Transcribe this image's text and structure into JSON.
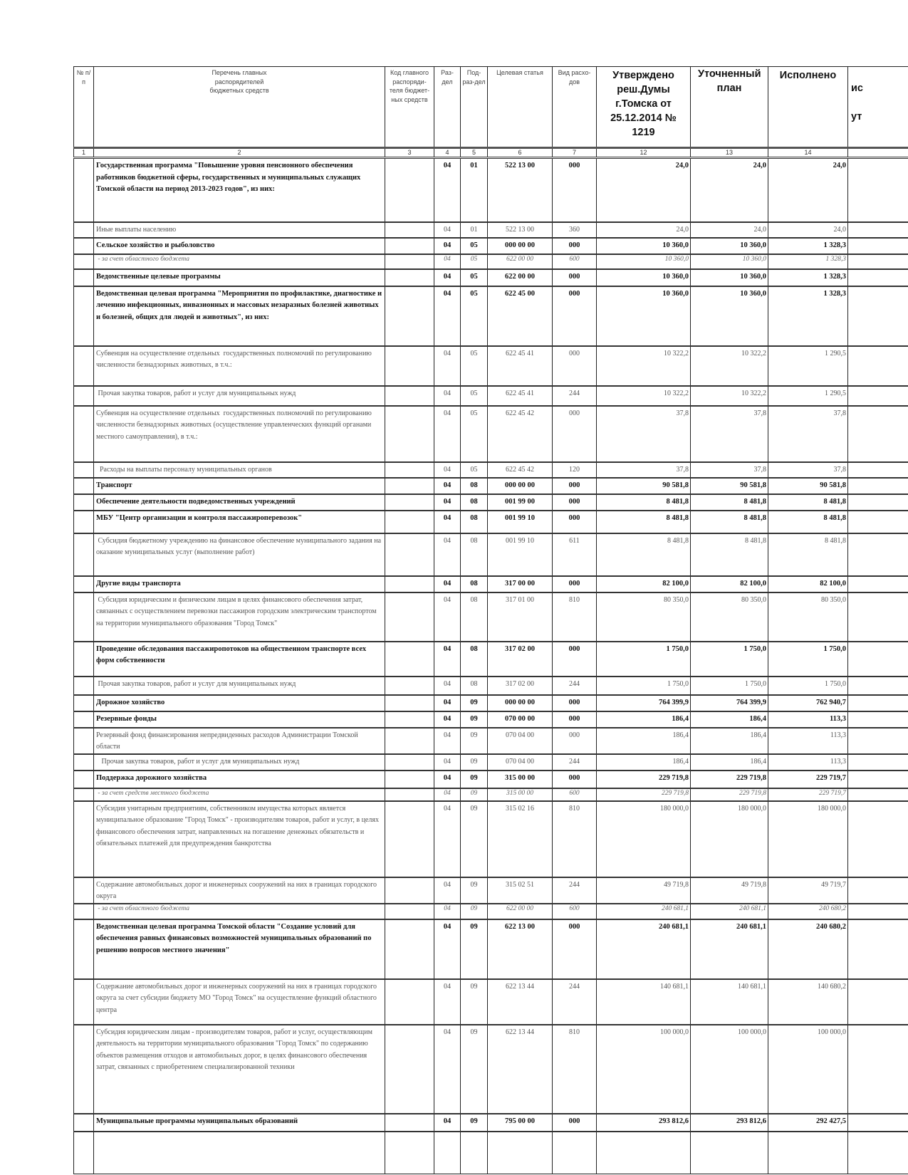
{
  "header": {
    "col_num": "№ п/п",
    "col_name": "Перечень главных распорядителей бюджетных средств",
    "col_kod": "Код главного распоряди-теля бюджет-ных средств",
    "col_razdel": "Раз-дел",
    "col_podrazdel": "Под-раз-дел",
    "col_cs": "Целевая статья",
    "col_vr": "Вид расхо-дов",
    "col_approved": "Утверждено реш.Думы г.Томска от 25.12.2014 № 1219",
    "col_plan": "Уточненный план",
    "col_done": "Исполнено",
    "col_partial_fragments": [
      "ис",
      "ут"
    ]
  },
  "column_numbers": [
    "1",
    "2",
    "3",
    "4",
    "5",
    "6",
    "7",
    "12",
    "13",
    "14",
    ""
  ],
  "rows": [
    {
      "style": "b",
      "h": 90,
      "name": "Государственная программа \"Повышение уровня пенсионного обеспечения  работников бюджетной сферы, государственных и муниципальных служащих Томской области на период 2013-2023 годов\", из них:",
      "kod": "",
      "rz": "04",
      "prz": "01",
      "cs": "522 13 00",
      "vr": "000",
      "v12": "24,0",
      "v13": "24,0",
      "v14": "24,0"
    },
    {
      "style": "",
      "h": 22,
      "name": "Иные выплаты населению",
      "kod": "",
      "rz": "04",
      "prz": "01",
      "cs": "522 13 00",
      "vr": "360",
      "v12": "24,0",
      "v13": "24,0",
      "v14": "24,0"
    },
    {
      "style": "b",
      "h": 23,
      "name": "Сельское хозяйство и рыболовство",
      "kod": "",
      "rz": "04",
      "prz": "05",
      "cs": "000 00 00",
      "vr": "000",
      "v12": "10 360,0",
      "v13": "10 360,0",
      "v14": "1 328,3"
    },
    {
      "style": "i",
      "h": 21,
      "name": " - за счет областного бюджета",
      "kod": "",
      "rz": "04",
      "prz": "05",
      "cs": "622 00 00",
      "vr": "600",
      "v12": "10 360,0",
      "v13": "10 360,0",
      "v14": "1 328,3"
    },
    {
      "style": "b",
      "h": 24,
      "name": "Ведомственные целевые программы",
      "kod": "",
      "rz": "04",
      "prz": "05",
      "cs": "622 00 00",
      "vr": "000",
      "v12": "10 360,0",
      "v13": "10 360,0",
      "v14": "1 328,3"
    },
    {
      "style": "b",
      "h": 84,
      "name": "Ведомственная целевая программа \"Мероприятия по профилактике, диагностике и лечению инфекционных, инвазионных и массовых незаразных болезней животных и болезней, общих для людей и животных\", из них:",
      "kod": "",
      "rz": "04",
      "prz": "05",
      "cs": "622 45 00",
      "vr": "000",
      "v12": "10 360,0",
      "v13": "10 360,0",
      "v14": "1 328,3"
    },
    {
      "style": "",
      "h": 56,
      "name": "Субвенция на осуществление отдельных  государственных полномочий по регулированию численности безнадзорных животных, в т.ч.:",
      "kod": "",
      "rz": "04",
      "prz": "05",
      "cs": "622 45 41",
      "vr": "000",
      "v12": "10 322,2",
      "v13": "10 322,2",
      "v14": "1 290,5"
    },
    {
      "style": "",
      "h": 28,
      "name": " Прочая закупка товаров, работ и услуг для муниципальных нужд",
      "kod": "",
      "rz": "04",
      "prz": "05",
      "cs": "622 45 41",
      "vr": "244",
      "v12": "10 322,2",
      "v13": "10 322,2",
      "v14": "1 290,5"
    },
    {
      "style": "",
      "h": 79,
      "name": "Субвенция на осуществление отдельных  государственных полномочий по регулированию численности безнадзорных животных (осуществление управленческих функций органами местного самоуправления), в т.ч.:",
      "kod": "",
      "rz": "04",
      "prz": "05",
      "cs": "622 45 42",
      "vr": "000",
      "v12": "37,8",
      "v13": "37,8",
      "v14": "37,8"
    },
    {
      "style": "",
      "h": 22,
      "name": "  Расходы на выплаты персоналу муниципальных органов",
      "kod": "",
      "rz": "04",
      "prz": "05",
      "cs": "622 45 42",
      "vr": "120",
      "v12": "37,8",
      "v13": "37,8",
      "v14": "37,8"
    },
    {
      "style": "b",
      "h": 23,
      "name": "Транспорт",
      "kod": "",
      "rz": "04",
      "prz": "08",
      "cs": "000 00 00",
      "vr": "000",
      "v12": "90 581,8",
      "v13": "90 581,8",
      "v14": "90 581,8"
    },
    {
      "style": "b",
      "h": 23,
      "name": "Обеспечение деятельности подведомственных учреждений",
      "kod": "",
      "rz": "04",
      "prz": "08",
      "cs": "001 99 00",
      "vr": "000",
      "v12": "8 481,8",
      "v13": "8 481,8",
      "v14": "8 481,8"
    },
    {
      "style": "b",
      "h": 32,
      "name": "МБУ \"Центр организации и контроля пассажироперевозок\"",
      "kod": "",
      "rz": "04",
      "prz": "08",
      "cs": "001 99 10",
      "vr": "000",
      "v12": "8 481,8",
      "v13": "8 481,8",
      "v14": "8 481,8"
    },
    {
      "style": "",
      "h": 60,
      "name": " Субсидия бюджетному учреждению на финансовое обеспечение муниципального задания на оказание муниципальных услуг (выполнение работ)",
      "kod": "",
      "rz": "04",
      "prz": "08",
      "cs": "001 99 10",
      "vr": "611",
      "v12": "8 481,8",
      "v13": "8 481,8",
      "v14": "8 481,8"
    },
    {
      "style": "b",
      "h": 23,
      "name": "Другие виды транспорта",
      "kod": "",
      "rz": "04",
      "prz": "08",
      "cs": "317 00 00",
      "vr": "000",
      "v12": "82 100,0",
      "v13": "82 100,0",
      "v14": "82 100,0"
    },
    {
      "style": "",
      "h": 69,
      "name": " Субсидия юридическим и физическим лицам в целях финансового обеспечения затрат, связанных с осуществлением перевозки пассажиров городским электрическим транспортом на территории муниципального образования \"Город Томск\"",
      "kod": "",
      "rz": "04",
      "prz": "08",
      "cs": "317 01 00",
      "vr": "810",
      "v12": "80 350,0",
      "v13": "80 350,0",
      "v14": "80 350,0"
    },
    {
      "style": "b",
      "h": 49,
      "name": "Проведение обследования пассажиропотоков на общественном транспорте всех форм собственности",
      "kod": "",
      "rz": "04",
      "prz": "08",
      "cs": "317 02 00",
      "vr": "000",
      "v12": "1 750,0",
      "v13": "1 750,0",
      "v14": "1 750,0"
    },
    {
      "style": "",
      "h": 26,
      "name": " Прочая закупка товаров, работ и услуг для муниципальных нужд",
      "kod": "",
      "rz": "04",
      "prz": "08",
      "cs": "317 02 00",
      "vr": "244",
      "v12": "1 750,0",
      "v13": "1 750,0",
      "v14": "1 750,0"
    },
    {
      "style": "b",
      "h": 23,
      "name": "Дорожное хозяйство",
      "kod": "",
      "rz": "04",
      "prz": "09",
      "cs": "000 00 00",
      "vr": "000",
      "v12": "764 399,9",
      "v13": "764 399,9",
      "v14": "762 940,7"
    },
    {
      "style": "b",
      "h": 23,
      "name": "Резервные фонды",
      "kod": "",
      "rz": "04",
      "prz": "09",
      "cs": "070 00 00",
      "vr": "000",
      "v12": "186,4",
      "v13": "186,4",
      "v14": "113,3"
    },
    {
      "style": "",
      "h": 32,
      "name": "Резервный фонд финансирования непредвиденных расходов Администрации Томской области",
      "kod": "",
      "rz": "04",
      "prz": "09",
      "cs": "070 04 00",
      "vr": "000",
      "v12": "186,4",
      "v13": "186,4",
      "v14": "113,3"
    },
    {
      "style": "",
      "h": 23,
      "name": "   Прочая закупка товаров, работ и услуг для муниципальных нужд",
      "kod": "",
      "rz": "04",
      "prz": "09",
      "cs": "070 04 00",
      "vr": "244",
      "v12": "186,4",
      "v13": "186,4",
      "v14": "113,3"
    },
    {
      "style": "b",
      "h": 25,
      "name": "Поддержка дорожного хозяйства",
      "kod": "",
      "rz": "04",
      "prz": "09",
      "cs": "315 00 00",
      "vr": "000",
      "v12": "229 719,8",
      "v13": "229 719,8",
      "v14": "229 719,7"
    },
    {
      "style": "i",
      "h": 18,
      "name": " - за счет средств местного бюджета",
      "kod": "",
      "rz": "04",
      "prz": "09",
      "cs": "315 00 00",
      "vr": "600",
      "v12": "229 719,8",
      "v13": "229 719,8",
      "v14": "229 719,7"
    },
    {
      "style": "",
      "h": 107,
      "name": "Субсидия унитарным предприятиям, собственником имущества которых является муниципальное образование \"Город Томск\" - производителям товаров, работ и услуг, в целях финансового обеспечения затрат, направленных на погашение денежных обязательств и обязательных платежей для предупреждения банкротства",
      "kod": "",
      "rz": "04",
      "prz": "09",
      "cs": "315 02 16",
      "vr": "810",
      "v12": "180 000,0",
      "v13": "180 000,0",
      "v14": "180 000,0"
    },
    {
      "style": "",
      "h": 37,
      "name": "Содержание автомобильных дорог и инженерных сооружений на них в границах городского округа",
      "kod": "",
      "rz": "04",
      "prz": "09",
      "cs": "315 02 51",
      "vr": "244",
      "v12": "49 719,8",
      "v13": "49 719,8",
      "v14": "49 719,7"
    },
    {
      "style": "i",
      "h": 22,
      "name": " - за счет областного бюджета",
      "kod": "",
      "rz": "04",
      "prz": "09",
      "cs": "622 00 00",
      "vr": "600",
      "v12": "240 681,1",
      "v13": "240 681,1",
      "v14": "240 680,2"
    },
    {
      "style": "b",
      "h": 84,
      "name": "Ведомственная целевая программа Томской области \"Создание условий для обеспечения равных финансовых возможностей муниципальных образований по решению вопросов местного значения\"",
      "kod": "",
      "rz": "04",
      "prz": "09",
      "cs": "622 13 00",
      "vr": "000",
      "v12": "240 681,1",
      "v13": "240 681,1",
      "v14": "240 680,2"
    },
    {
      "style": "",
      "h": 64,
      "name": "Содержание автомобильных дорог и инженерных сооружений на них в границах городского округа за счет субсидии бюджету МО \"Город Томск\" на осуществление функций областного центра",
      "kod": "",
      "rz": "04",
      "prz": "09",
      "cs": "622 13 44",
      "vr": "244",
      "v12": "140 681,1",
      "v13": "140 681,1",
      "v14": "140 680,2"
    },
    {
      "style": "",
      "h": 125,
      "name": "Субсидия юридическим лицам - производителям товаров, работ и услуг, осуществляющим деятельность на территории муниципального образования \"Город Томск\" по содержанию объектов размещения отходов и автомобильных дорог, в целях финансового обеспечения затрат, связанных с приобретением специализированной техники",
      "kod": "",
      "rz": "04",
      "prz": "09",
      "cs": "622 13 44",
      "vr": "810",
      "v12": "100 000,0",
      "v13": "100 000,0",
      "v14": "100 000,0"
    },
    {
      "style": "b",
      "h": 25,
      "name": "Муниципальные программы муниципальных образований",
      "kod": "",
      "rz": "04",
      "prz": "09",
      "cs": "795 00 00",
      "vr": "000",
      "v12": "293 812,6",
      "v13": "293 812,6",
      "v14": "292 427,5"
    },
    {
      "style": "",
      "h": 60,
      "name": "",
      "kod": "",
      "rz": "",
      "prz": "",
      "cs": "",
      "vr": "",
      "v12": "",
      "v13": "",
      "v14": ""
    }
  ]
}
